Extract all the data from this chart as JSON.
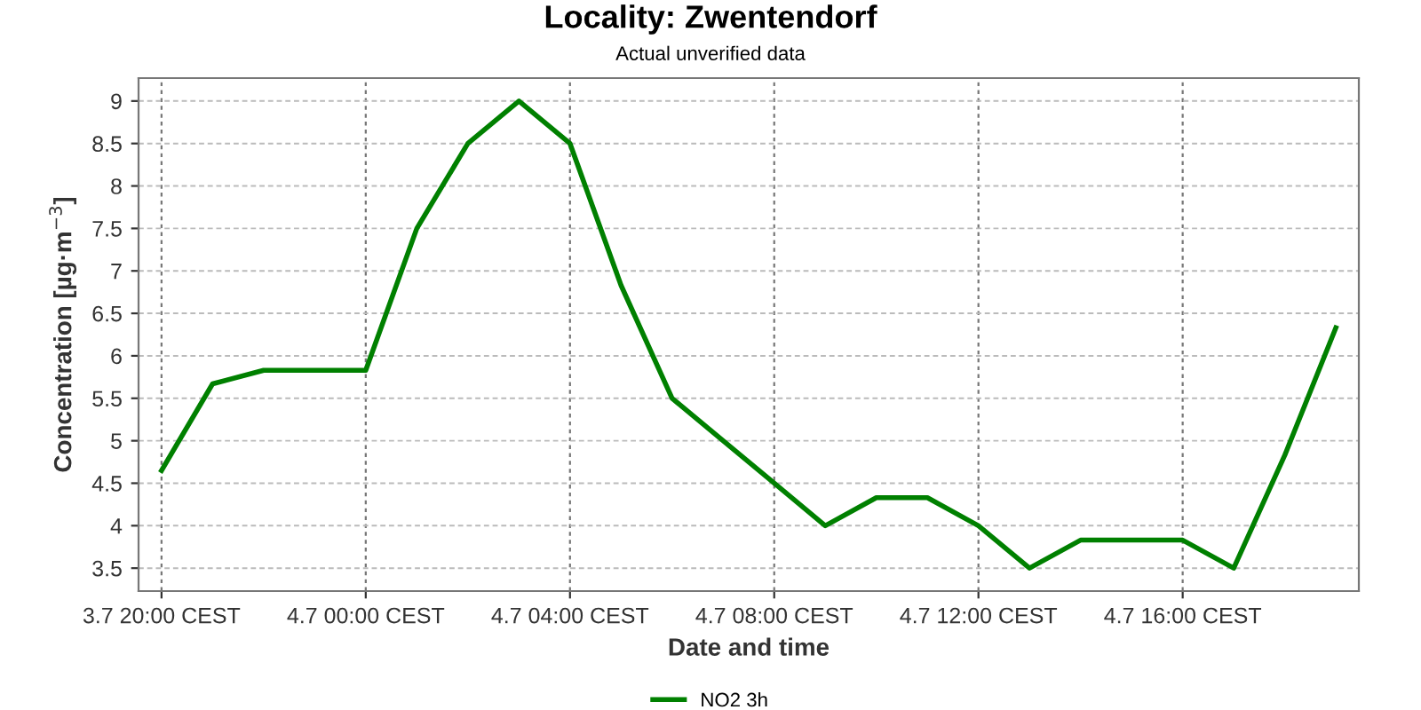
{
  "chart_data": {
    "type": "line",
    "title": "Locality: Zwentendorf",
    "subtitle": "Actual unverified data",
    "xlabel": "Date and time",
    "ylabel": "Concentration [µg·m$^{−3}$]",
    "categories": [
      "3.7 20:00 CEST",
      null,
      null,
      null,
      "4.7 00:00 CEST",
      null,
      null,
      null,
      "4.7 04:00 CEST",
      null,
      null,
      null,
      "4.7 08:00 CEST",
      null,
      null,
      null,
      "4.7 12:00 CEST",
      null,
      null,
      null,
      "4.7 16:00 CEST",
      null,
      null,
      null
    ],
    "series": [
      {
        "name": "NO2 3h",
        "color": "#008000",
        "values": [
          4.65,
          5.67,
          5.83,
          5.83,
          5.83,
          7.5,
          8.5,
          9.0,
          8.5,
          6.83,
          5.5,
          5.0,
          4.5,
          4.0,
          4.33,
          4.33,
          4.0,
          3.5,
          3.83,
          3.83,
          3.83,
          3.5,
          4.83,
          6.33
        ]
      }
    ],
    "ylim": [
      3.23,
      9.27
    ],
    "yticks": [
      3.5,
      4,
      4.5,
      5,
      5.5,
      6,
      6.5,
      7,
      7.5,
      8,
      8.5,
      9
    ],
    "grid": true,
    "legend": "bottom",
    "marker": "none",
    "line_style": "solid"
  }
}
